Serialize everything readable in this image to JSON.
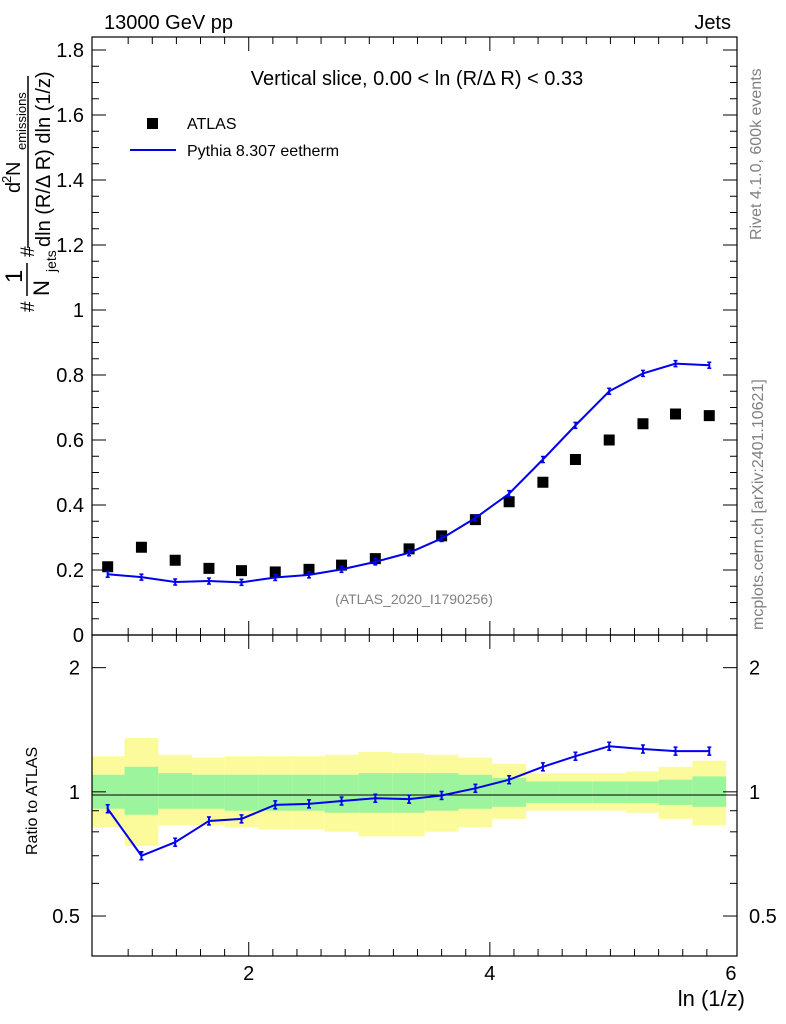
{
  "header": {
    "left": "13000 GeV pp",
    "right": "Jets"
  },
  "side_text": {
    "rivet": "Rivet 4.1.0,  600k events",
    "mcplots": "mcplots.cern.ch [arXiv:2401.10621]"
  },
  "chart_data": [
    {
      "type": "scatter",
      "title": "Vertical slice, 0.00 < ln (R/Δ R) < 0.33",
      "ylabel": "1/N_jets d² N_emissions / dln (R/Δ R) dln (1/z)",
      "ylabel_parts": {
        "frac1_num": "1",
        "frac1_den": "N",
        "frac1_den_sub": "jets",
        "frac2_num": "d",
        "frac2_num_sup": "2",
        "frac2_num_main": " N",
        "frac2_num_sub": "emissions",
        "frac2_den": "dln (R/Δ R) dln (1/z)"
      },
      "xlabel": "ln (1/z)",
      "xlim": [
        0.7,
        6.05
      ],
      "ylim": [
        0,
        1.84
      ],
      "y_ticks": [
        0,
        0.2,
        0.4,
        0.6,
        0.8,
        1,
        1.2,
        1.4,
        1.6,
        1.8
      ],
      "y_tick_labels": [
        "0",
        "0.2",
        "0.4",
        "0.6",
        "0.8",
        "1",
        "1.2",
        "1.4",
        "1.6",
        "1.8"
      ],
      "x_ticks": [
        2,
        4,
        6
      ],
      "legend": [
        "ATLAS",
        "Pythia 8.307 eetherm"
      ],
      "legend_position": "top-left",
      "annotation": "(ATLAS_2020_I1790256)",
      "x": [
        0.83,
        1.11,
        1.39,
        1.67,
        1.94,
        2.22,
        2.5,
        2.77,
        3.05,
        3.33,
        3.6,
        3.88,
        4.16,
        4.44,
        4.71,
        4.99,
        5.27,
        5.54,
        5.82
      ],
      "series": [
        {
          "name": "ATLAS",
          "color": "#000000",
          "values": [
            0.21,
            0.27,
            0.23,
            0.205,
            0.198,
            0.194,
            0.202,
            0.215,
            0.235,
            0.265,
            0.305,
            0.355,
            0.41,
            0.47,
            0.54,
            0.6,
            0.65,
            0.68,
            0.675
          ]
        },
        {
          "name": "Pythia 8.307 eetherm",
          "color": "#0000ee",
          "values": [
            0.187,
            0.178,
            0.163,
            0.166,
            0.162,
            0.177,
            0.185,
            0.202,
            0.225,
            0.253,
            0.297,
            0.36,
            0.435,
            0.54,
            0.645,
            0.75,
            0.805,
            0.835,
            0.83
          ]
        }
      ]
    },
    {
      "type": "line",
      "ylabel": "Ratio to ATLAS",
      "xlabel": "ln (1/z)",
      "y_scale": "log",
      "ylim": [
        0.4,
        2.4
      ],
      "y_ticks": [
        0.5,
        1,
        2
      ],
      "y_tick_labels": [
        "0.5",
        "1",
        "2"
      ],
      "x_ticks": [
        2,
        4,
        6
      ],
      "x_tick_labels": [
        "2",
        "4",
        "6"
      ],
      "x": [
        0.83,
        1.11,
        1.39,
        1.67,
        1.94,
        2.22,
        2.5,
        2.77,
        3.05,
        3.33,
        3.6,
        3.88,
        4.16,
        4.44,
        4.71,
        4.99,
        5.27,
        5.54,
        5.82
      ],
      "ratio": [
        0.91,
        0.7,
        0.755,
        0.85,
        0.86,
        0.93,
        0.935,
        0.95,
        0.965,
        0.96,
        0.98,
        1.02,
        1.07,
        1.15,
        1.22,
        1.29,
        1.27,
        1.255,
        1.255
      ],
      "bin_edges": [
        0.7,
        0.97,
        1.25,
        1.53,
        1.8,
        2.08,
        2.36,
        2.63,
        2.91,
        3.19,
        3.46,
        3.74,
        4.02,
        4.3,
        4.57,
        4.85,
        5.13,
        5.4,
        5.68,
        5.96
      ],
      "band_inner": [
        [
          0.91,
          1.1
        ],
        [
          0.88,
          1.15
        ],
        [
          0.91,
          1.11
        ],
        [
          0.91,
          1.1
        ],
        [
          0.9,
          1.1
        ],
        [
          0.9,
          1.1
        ],
        [
          0.9,
          1.1
        ],
        [
          0.89,
          1.1
        ],
        [
          0.89,
          1.11
        ],
        [
          0.89,
          1.11
        ],
        [
          0.9,
          1.11
        ],
        [
          0.91,
          1.1
        ],
        [
          0.92,
          1.08
        ],
        [
          0.94,
          1.06
        ],
        [
          0.94,
          1.06
        ],
        [
          0.94,
          1.06
        ],
        [
          0.94,
          1.06
        ],
        [
          0.93,
          1.07
        ],
        [
          0.92,
          1.09
        ]
      ],
      "band_outer": [
        [
          0.82,
          1.22
        ],
        [
          0.74,
          1.35
        ],
        [
          0.83,
          1.23
        ],
        [
          0.83,
          1.21
        ],
        [
          0.82,
          1.22
        ],
        [
          0.81,
          1.22
        ],
        [
          0.81,
          1.22
        ],
        [
          0.8,
          1.23
        ],
        [
          0.78,
          1.25
        ],
        [
          0.78,
          1.24
        ],
        [
          0.8,
          1.23
        ],
        [
          0.82,
          1.21
        ],
        [
          0.86,
          1.17
        ],
        [
          0.9,
          1.11
        ],
        [
          0.9,
          1.11
        ],
        [
          0.9,
          1.11
        ],
        [
          0.89,
          1.12
        ],
        [
          0.86,
          1.15
        ],
        [
          0.83,
          1.19
        ]
      ],
      "band_colors": {
        "inner": "#9cf59c",
        "outer": "#fbfb9c"
      }
    }
  ]
}
